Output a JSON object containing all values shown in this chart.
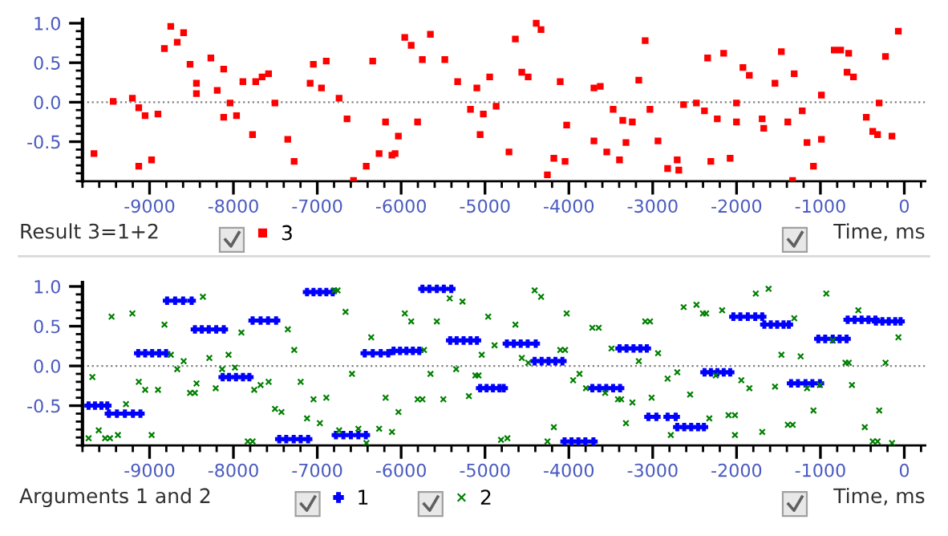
{
  "chart_data": [
    {
      "type": "scatter",
      "title": "Result 3=1+2",
      "xlabel": "Time, ms",
      "legend": "bottom",
      "grid": false,
      "xlim": [
        -9800,
        250
      ],
      "xticks": [
        -9000,
        -8000,
        -7000,
        -6000,
        -5000,
        -4000,
        -3000,
        -2000,
        -1000,
        0,
        {
          "value": -9800,
          "label": null
        },
        {
          "value": -9600,
          "label": null
        },
        {
          "value": -9400,
          "label": null
        },
        {
          "value": -9200,
          "label": null
        },
        {
          "value": -8800,
          "label": null
        },
        {
          "value": -8600,
          "label": null
        },
        {
          "value": -8400,
          "label": null
        },
        {
          "value": -8200,
          "label": null
        },
        {
          "value": -7800,
          "label": null
        },
        {
          "value": -7600,
          "label": null
        },
        {
          "value": -7400,
          "label": null
        },
        {
          "value": -7200,
          "label": null
        },
        {
          "value": -6800,
          "label": null
        },
        {
          "value": -6600,
          "label": null
        },
        {
          "value": -6400,
          "label": null
        },
        {
          "value": -6200,
          "label": null
        },
        {
          "value": -5800,
          "label": null
        },
        {
          "value": -5600,
          "label": null
        },
        {
          "value": -5400,
          "label": null
        },
        {
          "value": -5200,
          "label": null
        },
        {
          "value": -4800,
          "label": null
        },
        {
          "value": -4600,
          "label": null
        },
        {
          "value": -4400,
          "label": null
        },
        {
          "value": -4200,
          "label": null
        },
        {
          "value": -3800,
          "label": null
        },
        {
          "value": -3600,
          "label": null
        },
        {
          "value": -3400,
          "label": null
        },
        {
          "value": -3200,
          "label": null
        },
        {
          "value": -2800,
          "label": null
        },
        {
          "value": -2600,
          "label": null
        },
        {
          "value": -2400,
          "label": null
        },
        {
          "value": -2200,
          "label": null
        },
        {
          "value": -1800,
          "label": null
        },
        {
          "value": -1600,
          "label": null
        },
        {
          "value": -1400,
          "label": null
        },
        {
          "value": -1200,
          "label": null
        },
        {
          "value": -800,
          "label": null
        },
        {
          "value": -600,
          "label": null
        },
        {
          "value": -400,
          "label": null
        },
        {
          "value": -200,
          "label": null
        },
        {
          "value": 200,
          "label": null
        }
      ],
      "ylim": [
        -1.0,
        1.05
      ],
      "yticks": [
        {
          "value": 1.0,
          "label": "1.0"
        },
        {
          "value": 0.5,
          "label": "0.5"
        },
        {
          "value": 0.0,
          "label": "0.0"
        },
        {
          "value": -0.5,
          "label": "-0.5"
        },
        {
          "value": -1.0,
          "label": null
        },
        {
          "value": -0.9,
          "label": null
        },
        {
          "value": -0.8,
          "label": null
        },
        {
          "value": -0.7,
          "label": null
        },
        {
          "value": -0.6,
          "label": null
        },
        {
          "value": -0.4,
          "label": null
        },
        {
          "value": -0.3,
          "label": null
        },
        {
          "value": -0.2,
          "label": null
        },
        {
          "value": -0.1,
          "label": null
        },
        {
          "value": 0.1,
          "label": null
        },
        {
          "value": 0.2,
          "label": null
        },
        {
          "value": 0.3,
          "label": null
        },
        {
          "value": 0.4,
          "label": null
        },
        {
          "value": 0.6,
          "label": null
        },
        {
          "value": 0.7,
          "label": null
        },
        {
          "value": 0.8,
          "label": null
        },
        {
          "value": 0.9,
          "label": null
        }
      ],
      "ref_lines": [
        {
          "axis": "y",
          "value": 0,
          "color": "#808080",
          "line_style": "dotted"
        }
      ],
      "series": [
        {
          "name": "3",
          "color": "#ff0000",
          "marker": "square",
          "x": [
            -9663,
            -9434,
            -9205,
            -9129,
            -9129,
            -9053,
            -8976,
            -8900,
            -8823,
            -8747,
            -8670,
            -8594,
            -8517,
            -8441,
            -8441,
            -8269,
            -8193,
            -8116,
            -8116,
            -8040,
            -7963,
            -7887,
            -7772,
            -7734,
            -7658,
            -7581,
            -7505,
            -7352,
            -7276,
            -7085,
            -7047,
            -6950,
            -6893,
            -6740,
            -6645,
            -6568,
            -6416,
            -6339,
            -6263,
            -6186,
            -6110,
            -6072,
            -6033,
            -5957,
            -5880,
            -5804,
            -5747,
            -5651,
            -5479,
            -5326,
            -5173,
            -5097,
            -5058,
            -5020,
            -4944,
            -4867,
            -4714,
            -4638,
            -4561,
            -4485,
            -4389,
            -4332,
            -4256,
            -4179,
            -4103,
            -4045,
            -4026,
            -3701,
            -3701,
            -3625,
            -3548,
            -3472,
            -3396,
            -3357,
            -3319,
            -3243,
            -3166,
            -3090,
            -3033,
            -2937,
            -2822,
            -2708,
            -2689,
            -2632,
            -2479,
            -2383,
            -2345,
            -2307,
            -2230,
            -2154,
            -2077,
            -2001,
            -2001,
            -1924,
            -1848,
            -1695,
            -1676,
            -1542,
            -1466,
            -1389,
            -1332,
            -1313,
            -1217,
            -1160,
            -1083,
            -988,
            -988,
            -835,
            -759,
            -682,
            -663,
            -606,
            -453,
            -376,
            -319,
            -300,
            -224,
            -147,
            -71
          ],
          "values": [
            -0.65,
            0.01,
            0.05,
            -0.07,
            -0.81,
            -0.17,
            -0.73,
            -0.15,
            0.68,
            0.96,
            0.76,
            0.88,
            0.48,
            0.24,
            0.11,
            0.56,
            0.15,
            0.42,
            -0.19,
            -0.01,
            -0.17,
            0.26,
            -0.41,
            0.26,
            0.32,
            0.36,
            -0.01,
            -0.47,
            -0.75,
            0.24,
            0.48,
            0.18,
            0.52,
            0.05,
            -0.21,
            -0.99,
            -0.81,
            0.52,
            -0.65,
            -0.25,
            -0.67,
            -0.65,
            -0.43,
            0.82,
            0.72,
            -0.25,
            0.54,
            0.86,
            0.54,
            0.26,
            -0.09,
            0.18,
            -0.41,
            -0.15,
            0.32,
            -0.05,
            -0.63,
            0.8,
            0.38,
            0.32,
            1.0,
            0.92,
            -0.92,
            -0.71,
            0.26,
            -0.75,
            -0.29,
            0.18,
            -0.49,
            0.2,
            -0.63,
            -0.09,
            -0.73,
            -0.23,
            -0.51,
            -0.25,
            0.28,
            0.78,
            -0.09,
            -0.49,
            -0.84,
            -0.73,
            -0.86,
            -0.03,
            -0.01,
            -0.11,
            0.56,
            -0.75,
            -0.21,
            0.62,
            -0.71,
            -0.01,
            -0.25,
            0.44,
            0.34,
            -0.21,
            -0.33,
            0.24,
            0.64,
            -0.25,
            -0.99,
            0.36,
            -0.11,
            -0.51,
            -0.81,
            0.09,
            -0.47,
            0.66,
            0.66,
            0.38,
            0.62,
            0.32,
            -0.19,
            -0.37,
            -0.41,
            -0.01,
            0.58,
            -0.43,
            0.9
          ]
        }
      ]
    },
    {
      "type": "scatter",
      "title": "Arguments 1 and 2",
      "xlabel": "Time, ms",
      "legend": "bottom",
      "grid": false,
      "xlim": [
        -9800,
        250
      ],
      "xticks": [
        -9000,
        -8000,
        -7000,
        -6000,
        -5000,
        -4000,
        -3000,
        -2000,
        -1000,
        0,
        {
          "value": -9800,
          "label": null
        },
        {
          "value": -9600,
          "label": null
        },
        {
          "value": -9400,
          "label": null
        },
        {
          "value": -9200,
          "label": null
        },
        {
          "value": -8800,
          "label": null
        },
        {
          "value": -8600,
          "label": null
        },
        {
          "value": -8400,
          "label": null
        },
        {
          "value": -8200,
          "label": null
        },
        {
          "value": -7800,
          "label": null
        },
        {
          "value": -7600,
          "label": null
        },
        {
          "value": -7400,
          "label": null
        },
        {
          "value": -7200,
          "label": null
        },
        {
          "value": -6800,
          "label": null
        },
        {
          "value": -6600,
          "label": null
        },
        {
          "value": -6400,
          "label": null
        },
        {
          "value": -6200,
          "label": null
        },
        {
          "value": -5800,
          "label": null
        },
        {
          "value": -5600,
          "label": null
        },
        {
          "value": -5400,
          "label": null
        },
        {
          "value": -5200,
          "label": null
        },
        {
          "value": -4800,
          "label": null
        },
        {
          "value": -4600,
          "label": null
        },
        {
          "value": -4400,
          "label": null
        },
        {
          "value": -4200,
          "label": null
        },
        {
          "value": -3800,
          "label": null
        },
        {
          "value": -3600,
          "label": null
        },
        {
          "value": -3400,
          "label": null
        },
        {
          "value": -3200,
          "label": null
        },
        {
          "value": -2800,
          "label": null
        },
        {
          "value": -2600,
          "label": null
        },
        {
          "value": -2400,
          "label": null
        },
        {
          "value": -2200,
          "label": null
        },
        {
          "value": -1800,
          "label": null
        },
        {
          "value": -1600,
          "label": null
        },
        {
          "value": -1400,
          "label": null
        },
        {
          "value": -1200,
          "label": null
        },
        {
          "value": -800,
          "label": null
        },
        {
          "value": -600,
          "label": null
        },
        {
          "value": -400,
          "label": null
        },
        {
          "value": -200,
          "label": null
        },
        {
          "value": 200,
          "label": null
        }
      ],
      "ylim": [
        -1.0,
        1.05
      ],
      "yticks": [
        {
          "value": 1.0,
          "label": "1.0"
        },
        {
          "value": 0.5,
          "label": "0.5"
        },
        {
          "value": 0.0,
          "label": "0.0"
        },
        {
          "value": -0.5,
          "label": "-0.5"
        },
        {
          "value": -1.0,
          "label": null
        },
        {
          "value": -0.9,
          "label": null
        },
        {
          "value": -0.8,
          "label": null
        },
        {
          "value": -0.7,
          "label": null
        },
        {
          "value": -0.6,
          "label": null
        },
        {
          "value": -0.4,
          "label": null
        },
        {
          "value": -0.3,
          "label": null
        },
        {
          "value": -0.2,
          "label": null
        },
        {
          "value": -0.1,
          "label": null
        },
        {
          "value": 0.1,
          "label": null
        },
        {
          "value": 0.2,
          "label": null
        },
        {
          "value": 0.3,
          "label": null
        },
        {
          "value": 0.4,
          "label": null
        },
        {
          "value": 0.6,
          "label": null
        },
        {
          "value": 0.7,
          "label": null
        },
        {
          "value": 0.8,
          "label": null
        },
        {
          "value": 0.9,
          "label": null
        }
      ],
      "ref_lines": [
        {
          "axis": "y",
          "value": 0,
          "color": "#808080",
          "line_style": "dotted"
        }
      ],
      "series": [
        {
          "name": "1",
          "color": "#0000ff",
          "marker": "plus",
          "x": [
            -9727,
            -9651,
            -9574,
            -9504,
            -9485,
            -9389,
            -9294,
            -9198,
            -9109,
            -9135,
            -9052,
            -8969,
            -8886,
            -8803,
            -8791,
            -8695,
            -8600,
            -8498,
            -8459,
            -8377,
            -8294,
            -8205,
            -8115,
            -8128,
            -8052,
            -7969,
            -7886,
            -7810,
            -7771,
            -7676,
            -7587,
            -7491,
            -7453,
            -7370,
            -7281,
            -7198,
            -7109,
            -7122,
            -7045,
            -6969,
            -6892,
            -6816,
            -6778,
            -6689,
            -6599,
            -6510,
            -6421,
            -6434,
            -6338,
            -6243,
            -6153,
            -6090,
            -6013,
            -5937,
            -5860,
            -5784,
            -5746,
            -5663,
            -5574,
            -5491,
            -5402,
            -5415,
            -5338,
            -5255,
            -5173,
            -5096,
            -5058,
            -4981,
            -4905,
            -4828,
            -4777,
            -4739,
            -4656,
            -4574,
            -4491,
            -4395,
            -4408,
            -4325,
            -4242,
            -4160,
            -4077,
            -4051,
            -3968,
            -3886,
            -3803,
            -3707,
            -3720,
            -3637,
            -3554,
            -3472,
            -3389,
            -3395,
            -3312,
            -3229,
            -3147,
            -3070,
            -3051,
            -2956,
            -2822,
            -2726,
            -2707,
            -2624,
            -2541,
            -2459,
            -2389,
            -2382,
            -2306,
            -2229,
            -2153,
            -2076,
            -2038,
            -1955,
            -1866,
            -1777,
            -1694,
            -1669,
            -1592,
            -1516,
            -1440,
            -1376,
            -1350,
            -1268,
            -1178,
            -1096,
            -1006,
            -1025,
            -943,
            -853,
            -771,
            -688,
            -675,
            -592,
            -509,
            -427,
            -344,
            -338,
            -261,
            -185,
            -108,
            -44
          ],
          "values": [
            -0.5,
            -0.5,
            -0.5,
            -0.5,
            -0.6,
            -0.6,
            -0.6,
            -0.6,
            -0.6,
            0.16,
            0.16,
            0.16,
            0.16,
            0.16,
            0.82,
            0.82,
            0.82,
            0.82,
            0.46,
            0.46,
            0.46,
            0.46,
            0.46,
            -0.14,
            -0.14,
            -0.14,
            -0.14,
            -0.14,
            0.57,
            0.57,
            0.57,
            0.57,
            -0.92,
            -0.92,
            -0.92,
            -0.92,
            -0.92,
            0.93,
            0.93,
            0.93,
            0.93,
            0.93,
            -0.87,
            -0.87,
            -0.87,
            -0.87,
            -0.87,
            0.16,
            0.16,
            0.16,
            0.16,
            0.19,
            0.19,
            0.19,
            0.19,
            0.19,
            0.97,
            0.97,
            0.97,
            0.97,
            0.97,
            0.32,
            0.32,
            0.32,
            0.32,
            0.32,
            -0.28,
            -0.28,
            -0.28,
            -0.28,
            -0.28,
            0.28,
            0.28,
            0.28,
            0.28,
            0.28,
            0.06,
            0.06,
            0.06,
            0.06,
            0.06,
            -0.95,
            -0.95,
            -0.95,
            -0.95,
            -0.95,
            -0.28,
            -0.28,
            -0.28,
            -0.28,
            -0.28,
            0.22,
            0.22,
            0.22,
            0.22,
            0.22,
            -0.64,
            -0.64,
            -0.64,
            -0.64,
            -0.77,
            -0.77,
            -0.77,
            -0.77,
            -0.77,
            -0.08,
            -0.08,
            -0.08,
            -0.08,
            -0.08,
            0.62,
            0.62,
            0.62,
            0.62,
            0.62,
            0.52,
            0.52,
            0.52,
            0.52,
            0.52,
            -0.22,
            -0.22,
            -0.22,
            -0.22,
            -0.22,
            0.34,
            0.34,
            0.34,
            0.34,
            0.34,
            0.58,
            0.58,
            0.58,
            0.58,
            0.58,
            0.56,
            0.56,
            0.56,
            0.56,
            0.56
          ]
        },
        {
          "name": "2",
          "color": "#008000",
          "marker": "cross",
          "x": [
            -9727,
            -9682,
            -9606,
            -9530,
            -9472,
            -9453,
            -9377,
            -9281,
            -9205,
            -9128,
            -9052,
            -8975,
            -8899,
            -8822,
            -8746,
            -8670,
            -8593,
            -8517,
            -8459,
            -8440,
            -8364,
            -8287,
            -8211,
            -8135,
            -8058,
            -7982,
            -7905,
            -7829,
            -7771,
            -7752,
            -7676,
            -7580,
            -7504,
            -7427,
            -7351,
            -7275,
            -7198,
            -7122,
            -7045,
            -6969,
            -6892,
            -6797,
            -6758,
            -6739,
            -6663,
            -6586,
            -6510,
            -6414,
            -6357,
            -6262,
            -6185,
            -6109,
            -6032,
            -5956,
            -5880,
            -5803,
            -5746,
            -5727,
            -5650,
            -5574,
            -5497,
            -5421,
            -5344,
            -5268,
            -5192,
            -5115,
            -5077,
            -5039,
            -4962,
            -4886,
            -4809,
            -4733,
            -4637,
            -4561,
            -4484,
            -4408,
            -4331,
            -4255,
            -4179,
            -4102,
            -4045,
            -4026,
            -3949,
            -3873,
            -3796,
            -3720,
            -3644,
            -3567,
            -3491,
            -3414,
            -3376,
            -3319,
            -3242,
            -3166,
            -3089,
            -3032,
            -3013,
            -2936,
            -2822,
            -2784,
            -2707,
            -2631,
            -2554,
            -2478,
            -2401,
            -2363,
            -2325,
            -2248,
            -2172,
            -2096,
            -2019,
            -2019,
            -1943,
            -1847,
            -1771,
            -1694,
            -1618,
            -1541,
            -1465,
            -1389,
            -1331,
            -1312,
            -1236,
            -1159,
            -1083,
            -1006,
            -930,
            -853,
            -701,
            -662,
            -624,
            -548,
            -471,
            -376,
            -318,
            -299,
            -223,
            -146,
            -70
          ],
          "values": [
            -0.91,
            -0.14,
            -0.81,
            -0.91,
            -0.91,
            0.62,
            -0.87,
            -0.48,
            0.66,
            -0.2,
            -0.3,
            -0.87,
            -0.3,
            0.52,
            0.14,
            -0.04,
            0.06,
            -0.34,
            -0.34,
            -0.22,
            0.87,
            0.1,
            -0.28,
            -0.04,
            0.14,
            -0.02,
            0.42,
            -0.95,
            -0.95,
            -0.3,
            -0.24,
            -0.2,
            -0.54,
            -0.58,
            0.46,
            0.2,
            -0.2,
            -0.66,
            -0.42,
            -0.72,
            -0.4,
            0.95,
            0.95,
            -0.81,
            0.68,
            -0.1,
            -0.79,
            -0.97,
            0.36,
            -0.79,
            -0.4,
            -0.83,
            -0.58,
            0.66,
            0.56,
            -0.42,
            -0.42,
            0.2,
            -0.1,
            0.56,
            -0.42,
            0.85,
            -0.04,
            0.81,
            -0.38,
            -0.12,
            -0.12,
            0.14,
            0.62,
            0.26,
            -0.93,
            -0.91,
            0.52,
            0.1,
            0.04,
            0.95,
            0.87,
            -0.95,
            -0.77,
            0.2,
            0.2,
            0.66,
            -0.18,
            -0.1,
            -0.28,
            0.48,
            0.48,
            -0.34,
            0.22,
            -0.42,
            -0.42,
            -0.72,
            -0.46,
            0.06,
            0.56,
            0.56,
            -0.4,
            0.16,
            -0.16,
            -0.87,
            -0.08,
            0.74,
            -0.36,
            0.77,
            0.66,
            0.66,
            -0.66,
            -0.12,
            0.7,
            -0.62,
            -0.62,
            -0.87,
            -0.18,
            -0.28,
            0.91,
            -0.83,
            0.97,
            -0.26,
            0.14,
            -0.74,
            -0.74,
            0.6,
            0.12,
            -0.28,
            -0.56,
            -0.24,
            0.91,
            0.32,
            0.04,
            0.04,
            -0.24,
            0.7,
            -0.77,
            -0.95,
            -0.95,
            -0.56,
            0.04,
            -0.97,
            0.36
          ]
        }
      ]
    }
  ]
}
